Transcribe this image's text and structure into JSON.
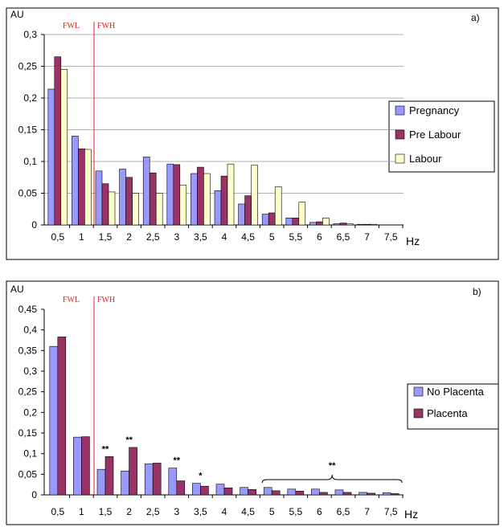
{
  "chart_data": [
    {
      "type": "bar",
      "panel_label": "a)",
      "ylabel": "AU",
      "xlabel": "Hz",
      "ylim": [
        0,
        0.3
      ],
      "yticks": [
        "0",
        "0,05",
        "0,1",
        "0,15",
        "0,2",
        "0,25",
        "0,3"
      ],
      "categories": [
        "0,5",
        "1",
        "1,5",
        "2",
        "2,5",
        "3",
        "3,5",
        "4",
        "4,5",
        "5",
        "5,5",
        "6",
        "6,5",
        "7",
        "7,5"
      ],
      "band_labels": {
        "low": "FWL",
        "high": "FWH"
      },
      "grid": true,
      "legend_position": "right",
      "series": [
        {
          "name": "Pregnancy",
          "color": "#9999ff",
          "values": [
            0.214,
            0.14,
            0.085,
            0.088,
            0.107,
            0.096,
            0.081,
            0.054,
            0.033,
            0.017,
            0.011,
            0.004,
            0.002,
            0.001,
            0.0
          ]
        },
        {
          "name": "Pre Labour",
          "color": "#993366",
          "values": [
            0.265,
            0.12,
            0.065,
            0.075,
            0.082,
            0.095,
            0.091,
            0.077,
            0.046,
            0.019,
            0.011,
            0.005,
            0.003,
            0.001,
            0.0
          ]
        },
        {
          "name": "Labour",
          "color": "#ffffcc",
          "values": [
            0.245,
            0.119,
            0.052,
            0.05,
            0.05,
            0.063,
            0.081,
            0.096,
            0.094,
            0.06,
            0.036,
            0.011,
            0.002,
            0.001,
            0.0
          ]
        }
      ]
    },
    {
      "type": "bar",
      "panel_label": "b)",
      "ylabel": "AU",
      "xlabel": "Hz",
      "ylim": [
        0,
        0.45
      ],
      "yticks": [
        "0",
        "0,05",
        "0,1",
        "0,15",
        "0,2",
        "0,25",
        "0,3",
        "0,35",
        "0,4",
        "0,45"
      ],
      "categories": [
        "0,5",
        "1",
        "1,5",
        "2",
        "2,5",
        "3",
        "3,5",
        "4",
        "4,5",
        "5",
        "5,5",
        "6",
        "6,5",
        "7",
        "7,5"
      ],
      "band_labels": {
        "low": "FWL",
        "high": "FWH"
      },
      "grid": false,
      "legend_position": "right",
      "series": [
        {
          "name": "No Placenta",
          "color": "#9999ff",
          "values": [
            0.36,
            0.14,
            0.062,
            0.058,
            0.075,
            0.065,
            0.028,
            0.026,
            0.018,
            0.018,
            0.014,
            0.014,
            0.012,
            0.006,
            0.005
          ]
        },
        {
          "name": "Placenta",
          "color": "#993366",
          "values": [
            0.383,
            0.141,
            0.093,
            0.115,
            0.077,
            0.034,
            0.021,
            0.017,
            0.013,
            0.01,
            0.009,
            0.006,
            0.006,
            0.004,
            0.003
          ]
        }
      ],
      "annotations": [
        {
          "text": "**",
          "category_index": 2
        },
        {
          "text": "**",
          "category_index": 3
        },
        {
          "text": "**",
          "category_index": 5
        },
        {
          "text": "*",
          "category_index": 6
        },
        {
          "text": "**",
          "brace_from_index": 9,
          "brace_to_index": 14
        }
      ]
    }
  ]
}
